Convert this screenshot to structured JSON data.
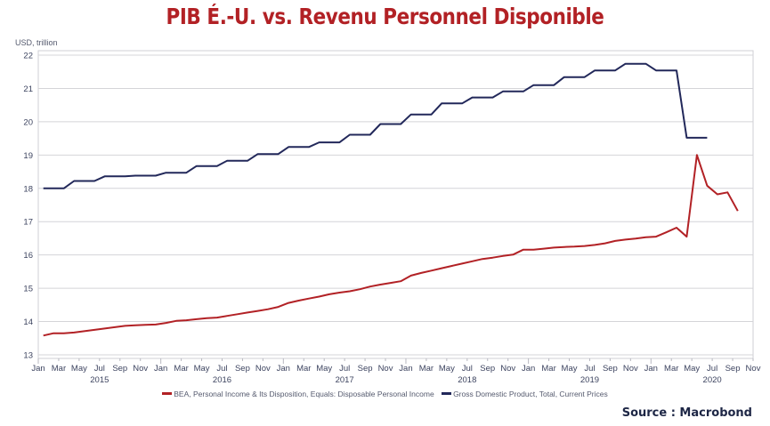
{
  "chart_data": {
    "type": "line",
    "title": "PIB É.-U. vs. Revenu Personnel Disponible",
    "ylabel": "USD, trillion",
    "xlabel": "",
    "ylim": [
      13,
      22
    ],
    "yticks": [
      13,
      14,
      15,
      16,
      17,
      18,
      19,
      20,
      21,
      22
    ],
    "grid": true,
    "legend_position": "bottom-center",
    "x_start": "2015-01",
    "x_end": "2020-11",
    "month_tick_labels": [
      "Jan",
      "Mar",
      "May",
      "Jul",
      "Sep",
      "Nov"
    ],
    "year_labels": [
      {
        "label": "2015",
        "month_index": 6
      },
      {
        "label": "2016",
        "month_index": 18
      },
      {
        "label": "2017",
        "month_index": 30
      },
      {
        "label": "2018",
        "month_index": 42
      },
      {
        "label": "2019",
        "month_index": 54
      },
      {
        "label": "2020",
        "month_index": 66
      }
    ],
    "series": [
      {
        "name": "BEA, Personal Income & Its Disposition, Equals: Disposable Personal Income",
        "color": "#b22125",
        "start": "2015-01",
        "frequency": "monthly",
        "values": [
          13.58,
          13.65,
          13.65,
          13.67,
          13.71,
          13.75,
          13.79,
          13.83,
          13.87,
          13.89,
          13.9,
          13.91,
          13.96,
          14.02,
          14.04,
          14.07,
          14.1,
          14.12,
          14.17,
          14.22,
          14.27,
          14.32,
          14.37,
          14.44,
          14.56,
          14.63,
          14.69,
          14.75,
          14.82,
          14.87,
          14.91,
          14.97,
          15.05,
          15.11,
          15.16,
          15.21,
          15.38,
          15.46,
          15.53,
          15.6,
          15.67,
          15.74,
          15.81,
          15.88,
          15.92,
          15.97,
          16.01,
          16.16,
          16.16,
          16.19,
          16.22,
          16.24,
          16.25,
          16.27,
          16.3,
          16.35,
          16.42,
          16.46,
          16.49,
          16.53,
          16.55,
          16.68,
          16.82,
          16.55,
          19.0,
          18.08,
          17.82,
          17.88,
          17.32
        ]
      },
      {
        "name": "Gross Domestic Product, Total, Current Prices",
        "color": "#22285a",
        "start": "2015-01",
        "frequency": "monthly (quarterly held)",
        "values": [
          18.0,
          18.0,
          18.0,
          18.22,
          18.22,
          18.22,
          18.36,
          18.36,
          18.36,
          18.38,
          18.38,
          18.38,
          18.47,
          18.47,
          18.47,
          18.67,
          18.67,
          18.67,
          18.83,
          18.83,
          18.83,
          19.03,
          19.03,
          19.03,
          19.24,
          19.24,
          19.24,
          19.38,
          19.38,
          19.38,
          19.61,
          19.61,
          19.61,
          19.93,
          19.93,
          19.93,
          20.22,
          20.22,
          20.22,
          20.55,
          20.55,
          20.55,
          20.73,
          20.73,
          20.73,
          20.91,
          20.91,
          20.91,
          21.1,
          21.1,
          21.1,
          21.34,
          21.34,
          21.34,
          21.54,
          21.54,
          21.54,
          21.74,
          21.74,
          21.74,
          21.54,
          21.54,
          21.54,
          19.52,
          19.52,
          19.52
        ]
      }
    ]
  },
  "source_label": "Source : Macrobond"
}
